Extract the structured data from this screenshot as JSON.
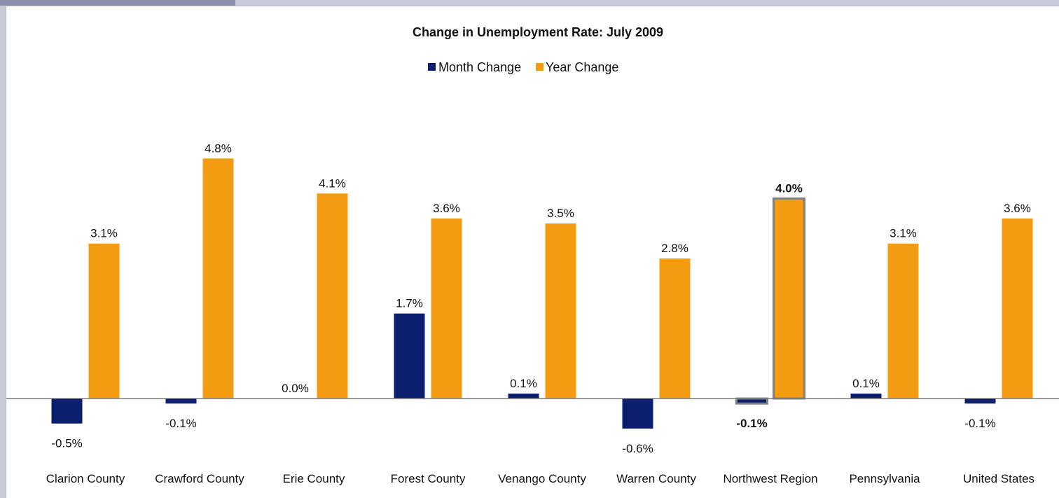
{
  "chart_data": {
    "type": "bar",
    "title": "Change in Unemployment Rate: July 2009",
    "categories": [
      "Clarion County",
      "Crawford County",
      "Erie County",
      "Forest County",
      "Venango County",
      "Warren County",
      "Northwest Region",
      "Pennsylvania",
      "United States"
    ],
    "series": [
      {
        "name": "Month Change",
        "color": "#0b1f6e",
        "values": [
          -0.5,
          -0.1,
          0.0,
          1.7,
          0.1,
          -0.6,
          -0.1,
          0.1,
          -0.1
        ],
        "labels": [
          "-0.5%",
          "-0.1%",
          "0.0%",
          "1.7%",
          "0.1%",
          "-0.6%",
          "-0.1%",
          "0.1%",
          "-0.1%"
        ]
      },
      {
        "name": "Year Change",
        "color": "#f39c12",
        "values": [
          3.1,
          4.8,
          4.1,
          3.6,
          3.5,
          2.8,
          4.0,
          3.1,
          3.6
        ],
        "labels": [
          "3.1%",
          "4.8%",
          "4.1%",
          "3.6%",
          "3.5%",
          "2.8%",
          "4.0%",
          "3.1%",
          "3.6%"
        ]
      }
    ],
    "highlight_category": "Northwest Region",
    "legend_position": "top-center",
    "grid": false,
    "ylim": [
      -0.9,
      5.5
    ]
  }
}
